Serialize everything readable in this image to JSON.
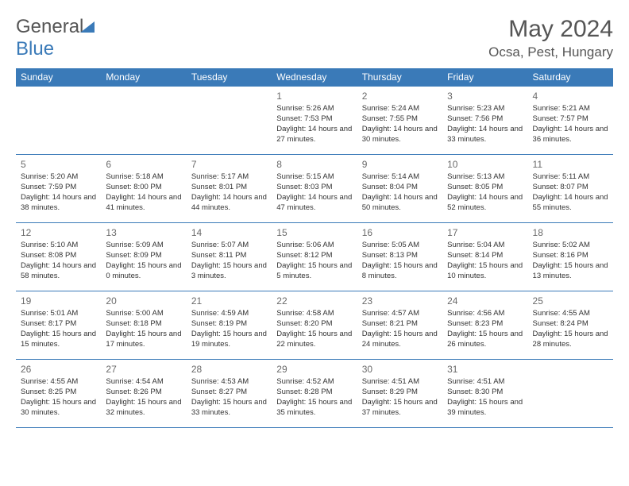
{
  "logo": {
    "text1": "General",
    "text2": "Blue"
  },
  "title": "May 2024",
  "location": "Ocsa, Pest, Hungary",
  "colors": {
    "header_bg": "#3a7ab8",
    "header_text": "#ffffff",
    "rule": "#3a7ab8",
    "body_text": "#333333",
    "title_text": "#555555"
  },
  "typography": {
    "month_title_fontsize": 30,
    "location_fontsize": 17,
    "weekday_fontsize": 12,
    "daynum_fontsize": 12,
    "cell_fontsize": 9.5
  },
  "weekdays": [
    "Sunday",
    "Monday",
    "Tuesday",
    "Wednesday",
    "Thursday",
    "Friday",
    "Saturday"
  ],
  "weeks": [
    [
      null,
      null,
      null,
      {
        "n": "1",
        "sr": "5:26 AM",
        "ss": "7:53 PM",
        "dl": "14 hours and 27 minutes."
      },
      {
        "n": "2",
        "sr": "5:24 AM",
        "ss": "7:55 PM",
        "dl": "14 hours and 30 minutes."
      },
      {
        "n": "3",
        "sr": "5:23 AM",
        "ss": "7:56 PM",
        "dl": "14 hours and 33 minutes."
      },
      {
        "n": "4",
        "sr": "5:21 AM",
        "ss": "7:57 PM",
        "dl": "14 hours and 36 minutes."
      }
    ],
    [
      {
        "n": "5",
        "sr": "5:20 AM",
        "ss": "7:59 PM",
        "dl": "14 hours and 38 minutes."
      },
      {
        "n": "6",
        "sr": "5:18 AM",
        "ss": "8:00 PM",
        "dl": "14 hours and 41 minutes."
      },
      {
        "n": "7",
        "sr": "5:17 AM",
        "ss": "8:01 PM",
        "dl": "14 hours and 44 minutes."
      },
      {
        "n": "8",
        "sr": "5:15 AM",
        "ss": "8:03 PM",
        "dl": "14 hours and 47 minutes."
      },
      {
        "n": "9",
        "sr": "5:14 AM",
        "ss": "8:04 PM",
        "dl": "14 hours and 50 minutes."
      },
      {
        "n": "10",
        "sr": "5:13 AM",
        "ss": "8:05 PM",
        "dl": "14 hours and 52 minutes."
      },
      {
        "n": "11",
        "sr": "5:11 AM",
        "ss": "8:07 PM",
        "dl": "14 hours and 55 minutes."
      }
    ],
    [
      {
        "n": "12",
        "sr": "5:10 AM",
        "ss": "8:08 PM",
        "dl": "14 hours and 58 minutes."
      },
      {
        "n": "13",
        "sr": "5:09 AM",
        "ss": "8:09 PM",
        "dl": "15 hours and 0 minutes."
      },
      {
        "n": "14",
        "sr": "5:07 AM",
        "ss": "8:11 PM",
        "dl": "15 hours and 3 minutes."
      },
      {
        "n": "15",
        "sr": "5:06 AM",
        "ss": "8:12 PM",
        "dl": "15 hours and 5 minutes."
      },
      {
        "n": "16",
        "sr": "5:05 AM",
        "ss": "8:13 PM",
        "dl": "15 hours and 8 minutes."
      },
      {
        "n": "17",
        "sr": "5:04 AM",
        "ss": "8:14 PM",
        "dl": "15 hours and 10 minutes."
      },
      {
        "n": "18",
        "sr": "5:02 AM",
        "ss": "8:16 PM",
        "dl": "15 hours and 13 minutes."
      }
    ],
    [
      {
        "n": "19",
        "sr": "5:01 AM",
        "ss": "8:17 PM",
        "dl": "15 hours and 15 minutes."
      },
      {
        "n": "20",
        "sr": "5:00 AM",
        "ss": "8:18 PM",
        "dl": "15 hours and 17 minutes."
      },
      {
        "n": "21",
        "sr": "4:59 AM",
        "ss": "8:19 PM",
        "dl": "15 hours and 19 minutes."
      },
      {
        "n": "22",
        "sr": "4:58 AM",
        "ss": "8:20 PM",
        "dl": "15 hours and 22 minutes."
      },
      {
        "n": "23",
        "sr": "4:57 AM",
        "ss": "8:21 PM",
        "dl": "15 hours and 24 minutes."
      },
      {
        "n": "24",
        "sr": "4:56 AM",
        "ss": "8:23 PM",
        "dl": "15 hours and 26 minutes."
      },
      {
        "n": "25",
        "sr": "4:55 AM",
        "ss": "8:24 PM",
        "dl": "15 hours and 28 minutes."
      }
    ],
    [
      {
        "n": "26",
        "sr": "4:55 AM",
        "ss": "8:25 PM",
        "dl": "15 hours and 30 minutes."
      },
      {
        "n": "27",
        "sr": "4:54 AM",
        "ss": "8:26 PM",
        "dl": "15 hours and 32 minutes."
      },
      {
        "n": "28",
        "sr": "4:53 AM",
        "ss": "8:27 PM",
        "dl": "15 hours and 33 minutes."
      },
      {
        "n": "29",
        "sr": "4:52 AM",
        "ss": "8:28 PM",
        "dl": "15 hours and 35 minutes."
      },
      {
        "n": "30",
        "sr": "4:51 AM",
        "ss": "8:29 PM",
        "dl": "15 hours and 37 minutes."
      },
      {
        "n": "31",
        "sr": "4:51 AM",
        "ss": "8:30 PM",
        "dl": "15 hours and 39 minutes."
      },
      null
    ]
  ],
  "labels": {
    "sunrise": "Sunrise:",
    "sunset": "Sunset:",
    "daylight": "Daylight:"
  }
}
